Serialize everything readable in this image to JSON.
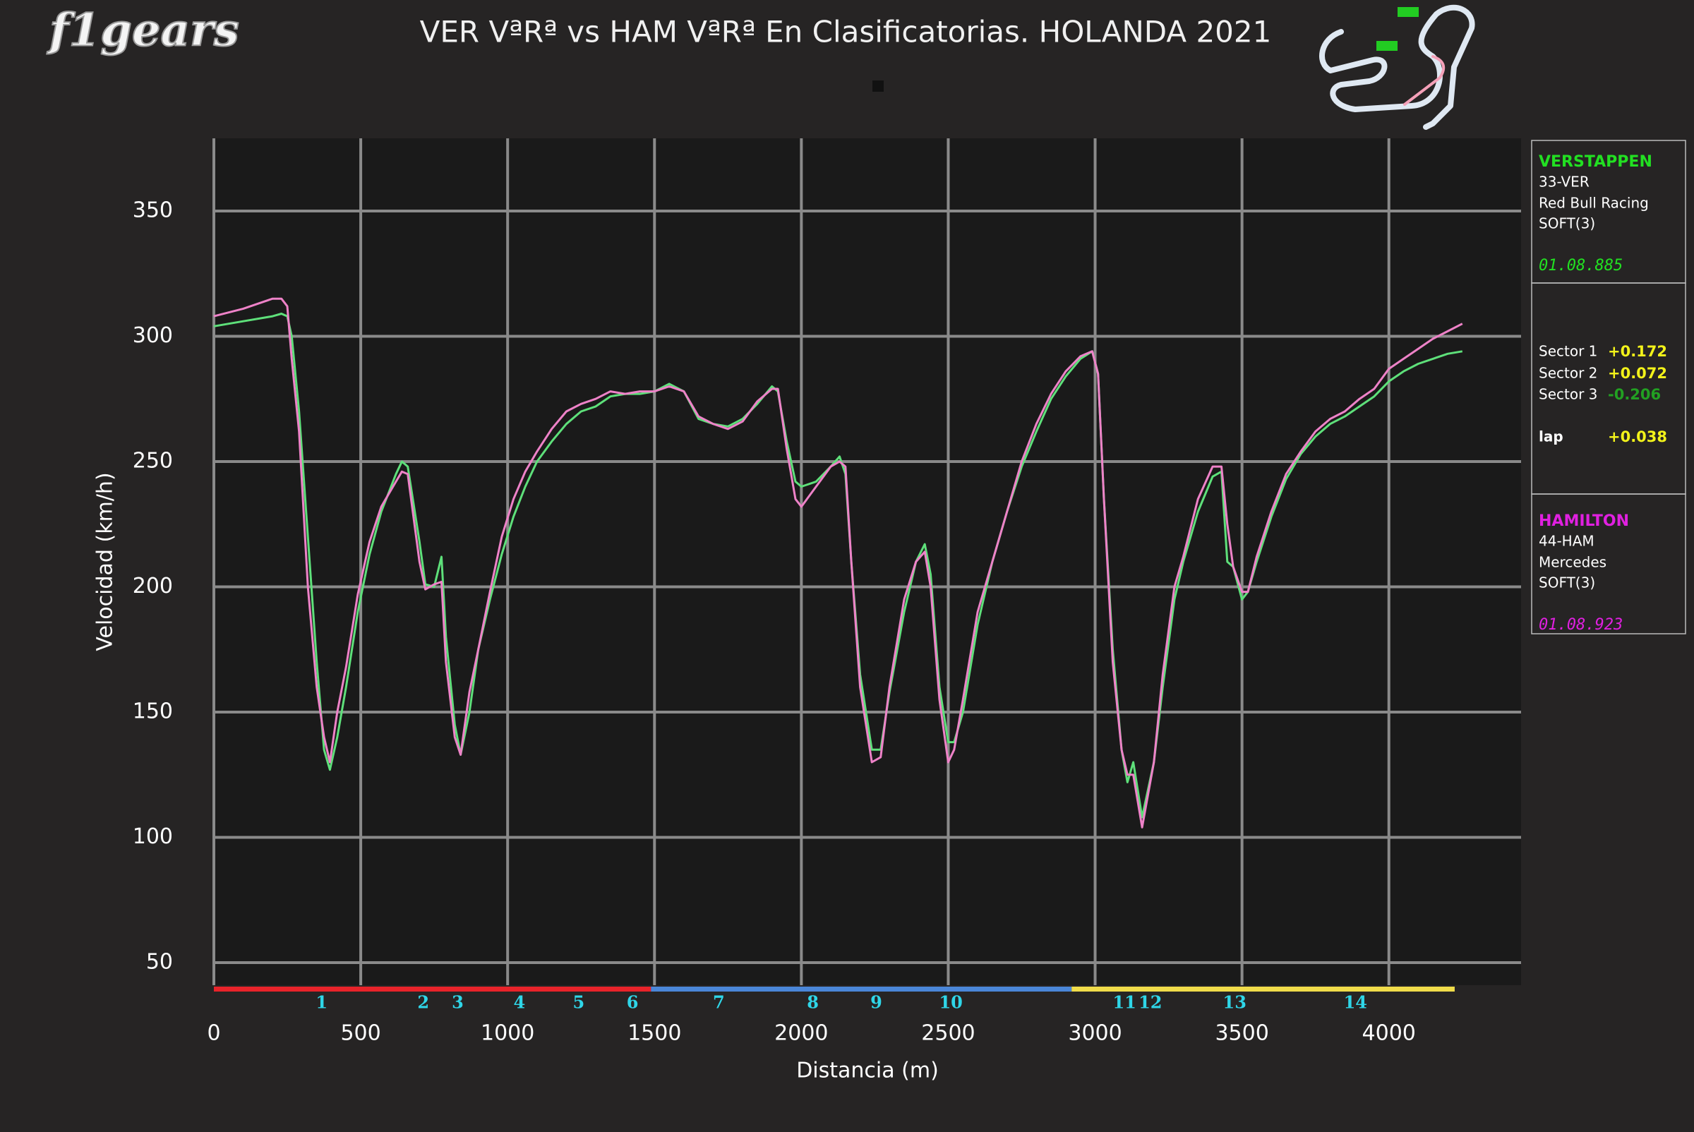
{
  "logo": "f1gears",
  "chart_data": {
    "type": "line",
    "title": "VER VªRª vs HAM VªRª En Clasificatorias. HOLANDA 2021",
    "x_label": "Distancia (m)",
    "y_label": "Velocidad (km/h)",
    "xlim": [
      0,
      4450
    ],
    "ylim": [
      41,
      379
    ],
    "xticks": [
      0,
      500,
      1000,
      1500,
      2000,
      2500,
      3000,
      3500,
      4000
    ],
    "yticks": [
      50,
      100,
      150,
      200,
      250,
      300,
      350
    ],
    "grid": true,
    "x": [
      0,
      100,
      200,
      230,
      250,
      265,
      290,
      320,
      350,
      375,
      395,
      420,
      450,
      490,
      530,
      570,
      620,
      640,
      660,
      700,
      720,
      750,
      775,
      790,
      820,
      840,
      870,
      900,
      940,
      980,
      1020,
      1060,
      1100,
      1150,
      1200,
      1250,
      1300,
      1350,
      1400,
      1450,
      1500,
      1550,
      1600,
      1650,
      1700,
      1750,
      1800,
      1850,
      1900,
      1920,
      1950,
      1980,
      2000,
      2050,
      2100,
      2130,
      2150,
      2170,
      2200,
      2240,
      2270,
      2300,
      2350,
      2390,
      2420,
      2440,
      2470,
      2500,
      2520,
      2550,
      2600,
      2650,
      2700,
      2750,
      2800,
      2850,
      2900,
      2950,
      2990,
      3010,
      3030,
      3060,
      3090,
      3110,
      3130,
      3160,
      3200,
      3230,
      3270,
      3300,
      3350,
      3400,
      3430,
      3450,
      3470,
      3500,
      3520,
      3550,
      3600,
      3650,
      3700,
      3750,
      3800,
      3850,
      3900,
      3950,
      4000,
      4050,
      4100,
      4150,
      4200,
      4250
    ],
    "series": [
      {
        "name": "VERSTAPPEN",
        "color": "#5ee07a",
        "values": [
          304,
          306,
          308,
          309,
          308,
          300,
          270,
          220,
          170,
          135,
          127,
          140,
          160,
          190,
          213,
          230,
          245,
          250,
          248,
          218,
          201,
          200,
          212,
          180,
          145,
          133,
          150,
          175,
          195,
          213,
          228,
          240,
          250,
          258,
          265,
          270,
          272,
          276,
          277,
          277,
          278,
          281,
          278,
          267,
          265,
          264,
          267,
          273,
          280,
          278,
          258,
          242,
          240,
          242,
          248,
          252,
          245,
          210,
          165,
          135,
          135,
          158,
          190,
          210,
          217,
          205,
          160,
          138,
          138,
          150,
          185,
          210,
          230,
          248,
          262,
          275,
          284,
          291,
          294,
          285,
          235,
          175,
          135,
          122,
          130,
          108,
          130,
          160,
          195,
          210,
          230,
          244,
          246,
          210,
          208,
          195,
          198,
          210,
          228,
          243,
          253,
          260,
          265,
          268,
          272,
          276,
          282,
          286,
          289,
          291,
          293,
          294
        ]
      },
      {
        "name": "HAMILTON",
        "color": "#ee82c8",
        "values": [
          308,
          311,
          315,
          315,
          312,
          291,
          262,
          200,
          160,
          140,
          130,
          150,
          168,
          197,
          218,
          232,
          242,
          246,
          245,
          210,
          199,
          201,
          202,
          170,
          140,
          133,
          158,
          175,
          198,
          220,
          235,
          246,
          254,
          263,
          270,
          273,
          275,
          278,
          277,
          278,
          278,
          280,
          278,
          268,
          265,
          263,
          266,
          274,
          279,
          279,
          255,
          235,
          232,
          240,
          248,
          250,
          248,
          210,
          160,
          130,
          132,
          160,
          195,
          210,
          214,
          200,
          155,
          130,
          135,
          155,
          190,
          210,
          230,
          250,
          265,
          277,
          286,
          292,
          294,
          285,
          235,
          170,
          135,
          125,
          125,
          104,
          130,
          165,
          200,
          212,
          235,
          248,
          248,
          225,
          208,
          198,
          198,
          212,
          230,
          245,
          254,
          262,
          267,
          270,
          275,
          279,
          287,
          291,
          295,
          299,
          302,
          305
        ]
      }
    ],
    "sectors": [
      {
        "start": 0,
        "end": 1488,
        "color": "#e8232a"
      },
      {
        "start": 1488,
        "end": 2920,
        "color": "#4a86d8"
      },
      {
        "start": 2920,
        "end": 4224,
        "color": "#f0dc4a"
      }
    ],
    "corners": [
      {
        "label": "1",
        "x": 367
      },
      {
        "label": "2",
        "x": 713
      },
      {
        "label": "3",
        "x": 830
      },
      {
        "label": "4",
        "x": 1040
      },
      {
        "label": "5",
        "x": 1242
      },
      {
        "label": "6",
        "x": 1425
      },
      {
        "label": "7",
        "x": 1719
      },
      {
        "label": "8",
        "x": 2039
      },
      {
        "label": "9",
        "x": 2255
      },
      {
        "label": "10",
        "x": 2509
      },
      {
        "label": "11",
        "x": 3100
      },
      {
        "label": "12",
        "x": 3188
      },
      {
        "label": "13",
        "x": 3475
      },
      {
        "label": "14",
        "x": 3886
      }
    ],
    "corner_color": "#2fd6e8",
    "info_panel": {
      "drivers": [
        {
          "name": "VERSTAPPEN",
          "code": "33-VER",
          "team": "Red Bull Racing",
          "tyre": "SOFT(3)",
          "time": "01.08.885",
          "color": "#22e022"
        },
        {
          "name": "HAMILTON",
          "code": "44-HAM",
          "team": "Mercedes",
          "tyre": "SOFT(3)",
          "time": "01.08.923",
          "color": "#e020e0"
        }
      ],
      "deltas": [
        {
          "label": "Sector 1",
          "value": "+0.172",
          "color": "#f2f21a"
        },
        {
          "label": "Sector 2",
          "value": "+0.072",
          "color": "#f2f21a"
        },
        {
          "label": "Sector 3",
          "value": "-0.206",
          "color": "#22a022"
        },
        {
          "label": "lap",
          "value": "+0.038",
          "color": "#f2f21a"
        }
      ]
    }
  }
}
